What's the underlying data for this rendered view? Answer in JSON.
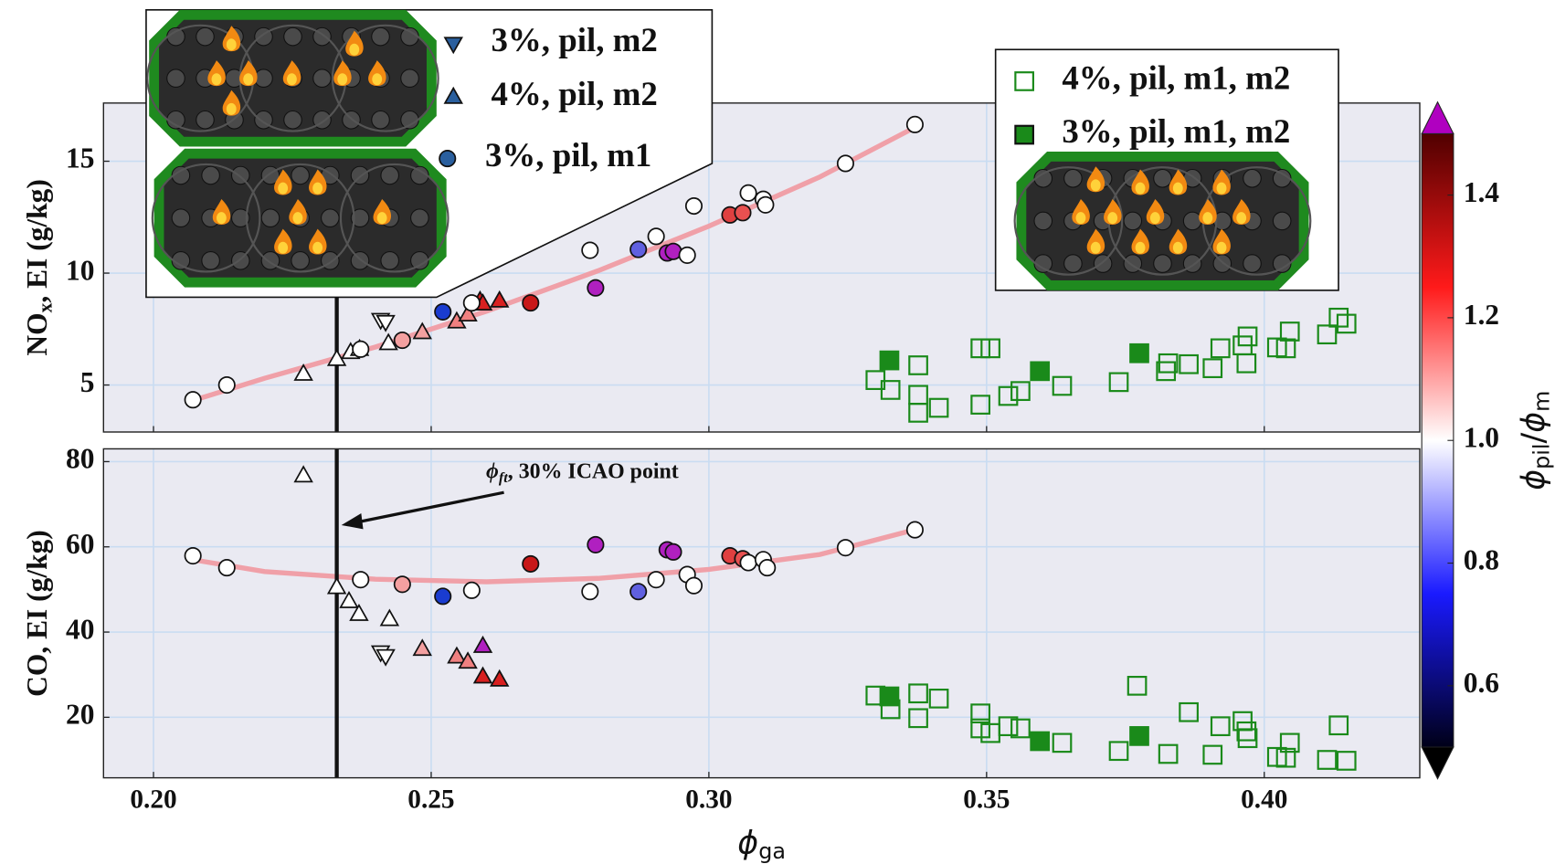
{
  "chart_data": [
    {
      "type": "scatter",
      "ylabel": {
        "main": "NO",
        "sub": "x",
        "rest": ", EI (g/kg)"
      },
      "xlim": [
        0.191,
        0.428
      ],
      "xticks": [
        0.2,
        0.25,
        0.3,
        0.35,
        0.4
      ],
      "ylim": [
        2.9,
        17.6
      ],
      "yticks": [
        5,
        10,
        15
      ],
      "grid": true,
      "vline": 0.233,
      "series": [
        {
          "name": "3%, pil, m2",
          "marker": "v",
          "color": "#2a5f9e",
          "x": [
            0.2409,
            0.2418
          ],
          "values": [
            7.92,
            7.83
          ],
          "colors": [
            "#ffffff",
            "#ffffff"
          ]
        },
        {
          "name": "4%, pil, m2",
          "marker": "^",
          "color": "#2a5f9e",
          "x": [
            0.227,
            0.233,
            0.2355,
            0.2371,
            0.2423,
            0.2484,
            0.2546,
            0.2566,
            0.2588,
            0.2593,
            0.2623
          ],
          "values": [
            5.49,
            6.15,
            6.46,
            6.6,
            6.86,
            7.35,
            7.83,
            8.14,
            8.76,
            8.63,
            8.76
          ],
          "colors": [
            "#ffffff",
            "#ffffff",
            "#ffffff",
            "#ffffff",
            "#ffffff",
            "#f4a0a0",
            "#f08080",
            "#f08080",
            "#d82020",
            "#d82020",
            "#d82020"
          ]
        },
        {
          "name": "3%, pil, m1",
          "marker": "o",
          "color": "#2a5f9e",
          "x": [
            0.2071,
            0.2132,
            0.2373,
            0.2448,
            0.2521,
            0.2573,
            0.2679,
            0.2786,
            0.2796,
            0.2873,
            0.2905,
            0.2925,
            0.2936,
            0.2961,
            0.2973,
            0.3038,
            0.3061,
            0.3071,
            0.3098,
            0.3102,
            0.3246,
            0.3371
          ],
          "values": [
            4.34,
            5.0,
            6.6,
            7.0,
            8.27,
            8.67,
            8.67,
            11.02,
            9.34,
            11.06,
            11.64,
            10.9,
            10.97,
            10.8,
            13.0,
            12.6,
            12.7,
            13.58,
            13.3,
            13.05,
            14.9,
            16.64
          ],
          "colors": [
            "#ffffff",
            "#ffffff",
            "#ffffff",
            "#f4a0a0",
            "#1a3cd0",
            "#ffffff",
            "#c81818",
            "#ffffff",
            "#b020c0",
            "#6060e0",
            "#ffffff",
            "#b020c0",
            "#b020c0",
            "#ffffff",
            "#ffffff",
            "#e04040",
            "#e85050",
            "#ffffff",
            "#ffffff",
            "#ffffff",
            "#ffffff",
            "#ffffff"
          ]
        },
        {
          "name": "4%, pil, m1, m2",
          "marker": "s",
          "open": true,
          "color": "#1a8a1a",
          "x": [
            0.33,
            0.3327,
            0.3377,
            0.3377,
            0.3377,
            0.3414,
            0.3489,
            0.3489,
            0.3507,
            0.3539,
            0.3561,
            0.3636,
            0.3738,
            0.3823,
            0.3827,
            0.3864,
            0.3907,
            0.3921,
            0.3961,
            0.397,
            0.3968,
            0.4023,
            0.4039,
            0.4046,
            0.4113,
            0.4134,
            0.4148
          ],
          "values": [
            5.22,
            4.78,
            5.88,
            4.56,
            3.76,
            3.98,
            4.12,
            6.64,
            6.64,
            4.51,
            4.73,
            4.96,
            5.13,
            5.62,
            5.97,
            5.93,
            5.75,
            6.64,
            6.77,
            7.17,
            5.97,
            6.68,
            6.64,
            7.39,
            7.26,
            8.01,
            7.74
          ]
        },
        {
          "name": "3%, pil, m1, m2",
          "marker": "s",
          "color": "#1a8a1a",
          "x": [
            0.3325,
            0.3596,
            0.3775
          ],
          "values": [
            6.1,
            5.62,
            6.42
          ]
        }
      ],
      "fit": {
        "color": "#f0a0a8",
        "x": [
          0.207,
          0.22,
          0.24,
          0.26,
          0.28,
          0.3,
          0.32,
          0.337
        ],
        "y": [
          4.3,
          5.3,
          6.7,
          8.3,
          10.1,
          12.1,
          14.3,
          16.5
        ]
      },
      "colorbar": {
        "label": {
          "a": "ϕ",
          "a_sub": "pil",
          "sep": "/",
          "b": "ϕ",
          "b_sub": "m"
        },
        "lim": [
          0.5,
          1.5
        ],
        "ticks": [
          0.6,
          0.8,
          {
            "value": 1,
            "label": "1.0"
          },
          1.2,
          1.4
        ],
        "cmap": [
          "#000018",
          "#1a1aff",
          "#ffffff",
          "#ff1a1a",
          "#500000"
        ],
        "over": "#b000c0",
        "under": "#000000"
      }
    },
    {
      "type": "scatter",
      "ylabel": {
        "main": "CO, EI (g/kg)"
      },
      "xlabel": {
        "main": "ϕ",
        "sub": "ga"
      },
      "xlim": [
        0.191,
        0.428
      ],
      "xticks": [
        {
          "value": 0.2,
          "label": "0.20"
        },
        0.25,
        {
          "value": 0.3,
          "label": "0.30"
        },
        0.35,
        {
          "value": 0.4,
          "label": "0.40"
        }
      ],
      "ylim": [
        5.8,
        83
      ],
      "yticks": [
        20,
        40,
        60,
        80
      ],
      "grid": true,
      "vline": 0.233,
      "annotation": {
        "symbol": "ϕ",
        "sub": "ft",
        "text": ", 30% ICAO point"
      },
      "series": [
        {
          "name": "3%, pil, m2",
          "marker": "v",
          "color": "#2a5f9e",
          "x": [
            0.2409,
            0.2418
          ],
          "values": [
            35.3,
            34.4
          ],
          "colors": [
            "#ffffff",
            "#ffffff"
          ]
        },
        {
          "name": "4%, pil, m2",
          "marker": "^",
          "color": "#2a5f9e",
          "x": [
            0.227,
            0.233,
            0.2352,
            0.237,
            0.2425,
            0.2484,
            0.2546,
            0.2566,
            0.2593,
            0.2593,
            0.2623
          ],
          "values": [
            76.7,
            50.5,
            47.2,
            44.2,
            43.0,
            36.0,
            34.2,
            33.0,
            36.7,
            29.5,
            28.8
          ],
          "colors": [
            "#ffffff",
            "#ffffff",
            "#ffffff",
            "#ffffff",
            "#ffffff",
            "#f4a0a0",
            "#f08080",
            "#f08080",
            "#b020c0",
            "#d82020",
            "#d82020"
          ]
        },
        {
          "name": "3%, pil, m1",
          "marker": "o",
          "color": "#2a5f9e",
          "x": [
            0.2071,
            0.2132,
            0.2373,
            0.2448,
            0.2521,
            0.2573,
            0.2679,
            0.2786,
            0.2796,
            0.2873,
            0.2905,
            0.2925,
            0.2936,
            0.2961,
            0.2973,
            0.3038,
            0.3061,
            0.3071,
            0.3098,
            0.3105,
            0.3246,
            0.3371
          ],
          "values": [
            57.9,
            55.1,
            52.3,
            51.2,
            48.4,
            49.8,
            56.0,
            49.5,
            60.5,
            49.5,
            52.3,
            59.3,
            58.8,
            53.5,
            50.9,
            57.9,
            57.2,
            56.3,
            57.0,
            55.1,
            59.8,
            64.0
          ],
          "colors": [
            "#ffffff",
            "#ffffff",
            "#ffffff",
            "#f4a0a0",
            "#1a3cd0",
            "#ffffff",
            "#c81818",
            "#ffffff",
            "#b020c0",
            "#6060e0",
            "#ffffff",
            "#b020c0",
            "#b020c0",
            "#ffffff",
            "#ffffff",
            "#e04040",
            "#e85050",
            "#ffffff",
            "#ffffff",
            "#ffffff",
            "#ffffff",
            "#ffffff"
          ]
        },
        {
          "name": "4%, pil, m1, m2",
          "marker": "s",
          "open": true,
          "color": "#1a8a1a",
          "x": [
            0.33,
            0.3327,
            0.3377,
            0.3377,
            0.3414,
            0.3489,
            0.3489,
            0.3507,
            0.3539,
            0.3561,
            0.3636,
            0.3738,
            0.3771,
            0.3827,
            0.3864,
            0.3907,
            0.3921,
            0.3961,
            0.397,
            0.3968,
            0.4023,
            0.4039,
            0.4046,
            0.4113,
            0.4134,
            0.4148
          ],
          "values": [
            25.1,
            21.9,
            25.6,
            19.8,
            24.4,
            20.9,
            17.4,
            16.3,
            17.9,
            17.4,
            14.0,
            12.1,
            27.4,
            11.4,
            21.2,
            11.2,
            17.9,
            19.1,
            15.1,
            16.7,
            10.7,
            10.5,
            14.0,
            10.0,
            18.1,
            9.8
          ]
        },
        {
          "name": "3%, pil, m1, m2",
          "marker": "s",
          "color": "#1a8a1a",
          "x": [
            0.3325,
            0.3596,
            0.3775
          ],
          "values": [
            24.9,
            14.4,
            15.6
          ]
        }
      ],
      "fit": {
        "color": "#f0a0a8",
        "x": [
          0.207,
          0.22,
          0.24,
          0.26,
          0.28,
          0.3,
          0.32,
          0.337
        ],
        "y": [
          57,
          54.2,
          52.4,
          51.8,
          52.6,
          54.7,
          58.2,
          64
        ]
      }
    }
  ]
}
